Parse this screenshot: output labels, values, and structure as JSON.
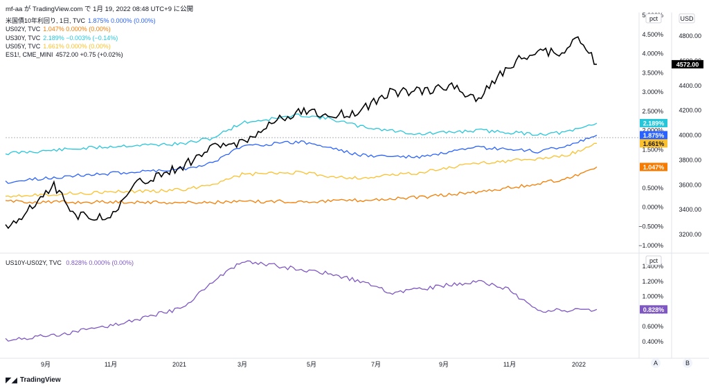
{
  "header": {
    "published": "mf-aa が TradingView.com で 1月 19, 2022 08:48 UTC+9 に公開"
  },
  "legend_top": [
    {
      "name": "米国債10年利回り, 1日, TVC",
      "vals": "1.875%  0.000% (0.00%)",
      "color": "#2962ff"
    },
    {
      "name": "US02Y, TVC",
      "vals": "1.047%  0.000% (0.00%)",
      "color": "#f57c00"
    },
    {
      "name": "US30Y, TVC",
      "vals": "2.189%  −0.003% (−0.14%)",
      "color": "#26c6da"
    },
    {
      "name": "US05Y, TVC",
      "vals": "1.661%  0.000% (0.00%)",
      "color": "#fbc02d"
    },
    {
      "name": "ES1!, CME_MINI",
      "vals": "4572.00  +0.75 (+0.02%)",
      "color": "#131722"
    }
  ],
  "legend_bottom": {
    "name": "US10Y-US02Y, TVC",
    "vals": "0.828%  0.000% (0.00%)",
    "color": "#7e57c2"
  },
  "footer": {
    "brand": "TradingView"
  },
  "chart_data": [
    {
      "type": "line",
      "x_ticks": [
        "9月",
        "11月",
        "2021",
        "3月",
        "5月",
        "7月",
        "9月",
        "11月",
        "2022"
      ],
      "left_scale_label": "pct",
      "right_scale_label": "USD",
      "pct_ticks": [
        "5.000%",
        "4.500%",
        "4.000%",
        "3.500%",
        "3.000%",
        "2.500%",
        "2.000%",
        "1.500%",
        "1.000%",
        "0.500%",
        "0.000%",
        "−0.500%",
        "−1.000%"
      ],
      "usd_ticks": [
        "4800.00",
        "4600.00",
        "4400.00",
        "4200.00",
        "4000.00",
        "3800.00",
        "3600.00",
        "3400.00",
        "3200.00"
      ],
      "series": [
        {
          "name": "US30Y",
          "color": "#26c6da",
          "last_label": "2.189%",
          "x": [
            0,
            0.1,
            0.2,
            0.3,
            0.35,
            0.4,
            0.5,
            0.55,
            0.6,
            0.7,
            0.8,
            0.9,
            0.95,
            1
          ],
          "y": [
            1.4,
            1.5,
            1.6,
            1.65,
            1.8,
            2.2,
            2.4,
            2.3,
            2.1,
            1.9,
            2.0,
            1.9,
            1.95,
            2.19
          ]
        },
        {
          "name": "US10Y",
          "color": "#2962ff",
          "last_label": "1.875%",
          "x": [
            0,
            0.1,
            0.2,
            0.3,
            0.35,
            0.4,
            0.5,
            0.55,
            0.6,
            0.7,
            0.8,
            0.9,
            0.95,
            1
          ],
          "y": [
            0.65,
            0.8,
            0.9,
            1.0,
            1.15,
            1.6,
            1.7,
            1.55,
            1.35,
            1.3,
            1.55,
            1.45,
            1.6,
            1.875
          ]
        },
        {
          "name": "US05Y",
          "color": "#fbc02d",
          "last_label": "1.661%",
          "x": [
            0,
            0.1,
            0.2,
            0.3,
            0.35,
            0.4,
            0.5,
            0.55,
            0.6,
            0.7,
            0.8,
            0.9,
            0.95,
            1
          ],
          "y": [
            0.3,
            0.35,
            0.4,
            0.45,
            0.6,
            0.85,
            0.9,
            0.8,
            0.75,
            0.9,
            1.15,
            1.25,
            1.35,
            1.661
          ]
        },
        {
          "name": "US02Y",
          "color": "#f57c00",
          "last_label": "1.047%",
          "x": [
            0,
            0.1,
            0.2,
            0.3,
            0.4,
            0.5,
            0.6,
            0.7,
            0.8,
            0.9,
            0.95,
            1
          ],
          "y": [
            0.15,
            0.13,
            0.14,
            0.12,
            0.14,
            0.15,
            0.18,
            0.25,
            0.4,
            0.6,
            0.75,
            1.047
          ]
        },
        {
          "name": "ES1!",
          "color": "#000000",
          "last_label": "4572.00",
          "axis": "usd",
          "x": [
            0,
            0.05,
            0.08,
            0.12,
            0.18,
            0.22,
            0.3,
            0.35,
            0.4,
            0.45,
            0.5,
            0.55,
            0.6,
            0.65,
            0.7,
            0.75,
            0.8,
            0.85,
            0.9,
            0.93,
            0.95,
            0.97,
            1
          ],
          "y": [
            3250,
            3450,
            3600,
            3350,
            3350,
            3600,
            3750,
            3900,
            3950,
            4100,
            4200,
            4150,
            4200,
            4350,
            4350,
            4400,
            4300,
            4550,
            4700,
            4650,
            4700,
            4800,
            4572
          ]
        }
      ]
    },
    {
      "type": "line",
      "left_scale_label": "pct",
      "spread_ticks": [
        "1.400%",
        "1.200%",
        "1.000%",
        "0.800%",
        "0.600%",
        "0.400%"
      ],
      "series": [
        {
          "name": "US10Y-US02Y",
          "color": "#7e57c2",
          "last_label": "0.828%",
          "x": [
            0,
            0.1,
            0.2,
            0.3,
            0.35,
            0.4,
            0.45,
            0.5,
            0.55,
            0.6,
            0.65,
            0.7,
            0.75,
            0.8,
            0.85,
            0.9,
            0.95,
            1
          ],
          "y": [
            0.42,
            0.5,
            0.65,
            0.85,
            1.2,
            1.45,
            1.42,
            1.35,
            1.3,
            1.2,
            1.05,
            1.1,
            1.15,
            1.2,
            1.1,
            0.8,
            0.82,
            0.828
          ]
        }
      ]
    }
  ],
  "axis_buttons": {
    "auto": "A",
    "log": "B"
  }
}
